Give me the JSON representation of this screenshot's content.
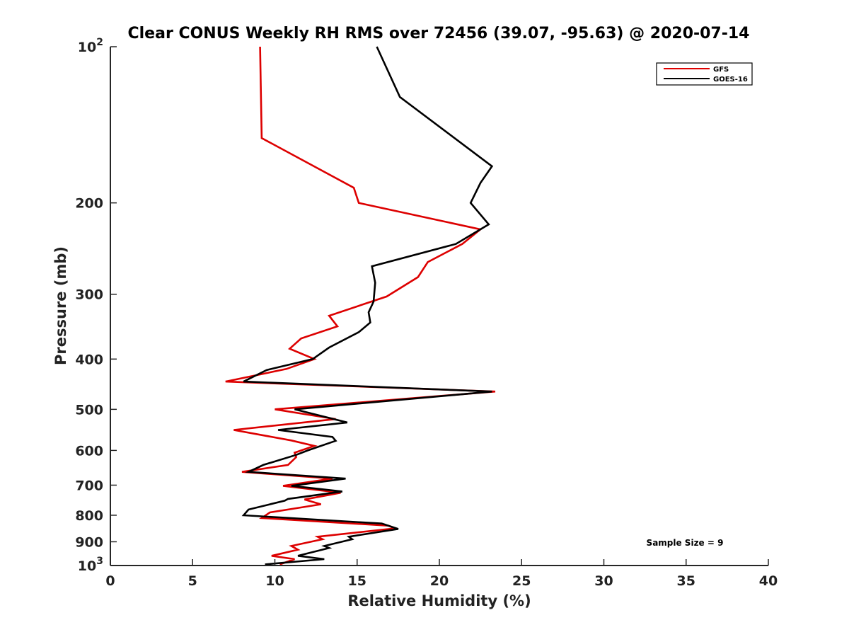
{
  "chart_data": {
    "type": "line",
    "title": "Clear CONUS Weekly RH RMS over 72456 (39.07, -95.63) @ 2020-07-14",
    "xlabel": "Relative Humidity (%)",
    "ylabel": "Pressure (mb)",
    "xlim": [
      0,
      40
    ],
    "ylim": [
      100,
      1000
    ],
    "yscale": "log",
    "y_reversed": true,
    "x_ticks": [
      0,
      5,
      10,
      15,
      20,
      25,
      30,
      35,
      40
    ],
    "x_tick_labels": [
      "0",
      "5",
      "10",
      "15",
      "20",
      "25",
      "30",
      "35",
      "40"
    ],
    "y_ticks": [
      100,
      200,
      300,
      400,
      500,
      600,
      700,
      800,
      900,
      1000
    ],
    "y_tick_labels": [
      {
        "base": "10",
        "exp": "2"
      },
      {
        "base": "200",
        "exp": ""
      },
      {
        "base": "300",
        "exp": ""
      },
      {
        "base": "400",
        "exp": ""
      },
      {
        "base": "500",
        "exp": ""
      },
      {
        "base": "600",
        "exp": ""
      },
      {
        "base": "700",
        "exp": ""
      },
      {
        "base": "800",
        "exp": ""
      },
      {
        "base": "900",
        "exp": ""
      },
      {
        "base": "10",
        "exp": "3"
      }
    ],
    "legend_position": "top-right",
    "annotation": "Sample Size = 9",
    "series": [
      {
        "name": "GFS",
        "color": "#dd0000",
        "points": [
          [
            9.1,
            100
          ],
          [
            9.2,
            150
          ],
          [
            14.8,
            187
          ],
          [
            15.1,
            200
          ],
          [
            22.5,
            225
          ],
          [
            21.4,
            240
          ],
          [
            19.3,
            260
          ],
          [
            18.7,
            278
          ],
          [
            16.8,
            303
          ],
          [
            13.3,
            330
          ],
          [
            13.8,
            346
          ],
          [
            11.6,
            365
          ],
          [
            10.9,
            382
          ],
          [
            12.4,
            400
          ],
          [
            10.7,
            418
          ],
          [
            7.0,
            442
          ],
          [
            23.4,
            462
          ],
          [
            10.0,
            500
          ],
          [
            13.7,
            522
          ],
          [
            7.5,
            548
          ],
          [
            11.0,
            574
          ],
          [
            12.4,
            588
          ],
          [
            11.2,
            606
          ],
          [
            11.3,
            618
          ],
          [
            10.8,
            640
          ],
          [
            8.0,
            660
          ],
          [
            13.5,
            680
          ],
          [
            10.5,
            702
          ],
          [
            14.0,
            724
          ],
          [
            11.8,
            746
          ],
          [
            12.8,
            762
          ],
          [
            9.7,
            790
          ],
          [
            9.2,
            810
          ],
          [
            16.9,
            838
          ],
          [
            17.3,
            848
          ],
          [
            12.6,
            880
          ],
          [
            12.9,
            890
          ],
          [
            11.0,
            917
          ],
          [
            11.4,
            932
          ],
          [
            9.8,
            958
          ],
          [
            11.2,
            972
          ],
          [
            10.3,
            995
          ]
        ]
      },
      {
        "name": "GOES-16",
        "color": "#000000",
        "points": [
          [
            16.2,
            100
          ],
          [
            17.6,
            125
          ],
          [
            23.2,
            170
          ],
          [
            22.5,
            183
          ],
          [
            21.9,
            200
          ],
          [
            23.0,
            220
          ],
          [
            21.0,
            240
          ],
          [
            15.9,
            265
          ],
          [
            16.1,
            285
          ],
          [
            16.0,
            310
          ],
          [
            15.7,
            325
          ],
          [
            15.8,
            340
          ],
          [
            15.1,
            355
          ],
          [
            13.3,
            380
          ],
          [
            12.3,
            400
          ],
          [
            9.5,
            420
          ],
          [
            8.1,
            442
          ],
          [
            23.2,
            462
          ],
          [
            11.2,
            500
          ],
          [
            14.4,
            530
          ],
          [
            10.2,
            548
          ],
          [
            13.5,
            565
          ],
          [
            13.7,
            575
          ],
          [
            12.0,
            600
          ],
          [
            11.3,
            612
          ],
          [
            9.3,
            640
          ],
          [
            8.4,
            660
          ],
          [
            14.3,
            680
          ],
          [
            11.0,
            702
          ],
          [
            14.1,
            720
          ],
          [
            10.8,
            744
          ],
          [
            10.6,
            750
          ],
          [
            8.4,
            780
          ],
          [
            8.1,
            800
          ],
          [
            16.5,
            830
          ],
          [
            17.5,
            850
          ],
          [
            14.5,
            880
          ],
          [
            14.7,
            890
          ],
          [
            13.0,
            917
          ],
          [
            13.3,
            925
          ],
          [
            11.4,
            958
          ],
          [
            13.0,
            972
          ],
          [
            9.4,
            995
          ]
        ]
      }
    ]
  }
}
